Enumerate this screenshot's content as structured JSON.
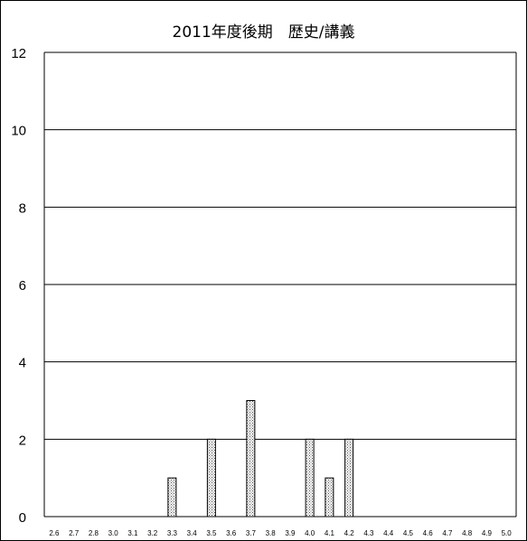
{
  "chart_data": {
    "type": "bar",
    "title": "2011年度後期　歴史/講義",
    "xlabel": "",
    "ylabel": "",
    "ylim": [
      0,
      12
    ],
    "yticks": [
      0,
      2,
      4,
      6,
      8,
      10,
      12
    ],
    "grid": true,
    "categories": [
      "2.6",
      "2.7",
      "2.8",
      "3.0",
      "3.1",
      "3.2",
      "3.3",
      "3.4",
      "3.5",
      "3.6",
      "3.7",
      "3.8",
      "3.9",
      "4.0",
      "4.1",
      "4.2",
      "4.3",
      "4.4",
      "4.5",
      "4.6",
      "4.7",
      "4.8",
      "4.9",
      "5.0"
    ],
    "values": [
      0,
      0,
      0,
      0,
      0,
      0,
      1,
      0,
      2,
      0,
      3,
      0,
      0,
      2,
      1,
      2,
      0,
      0,
      0,
      0,
      0,
      0,
      0,
      0
    ],
    "bar_pattern": "dotted"
  }
}
